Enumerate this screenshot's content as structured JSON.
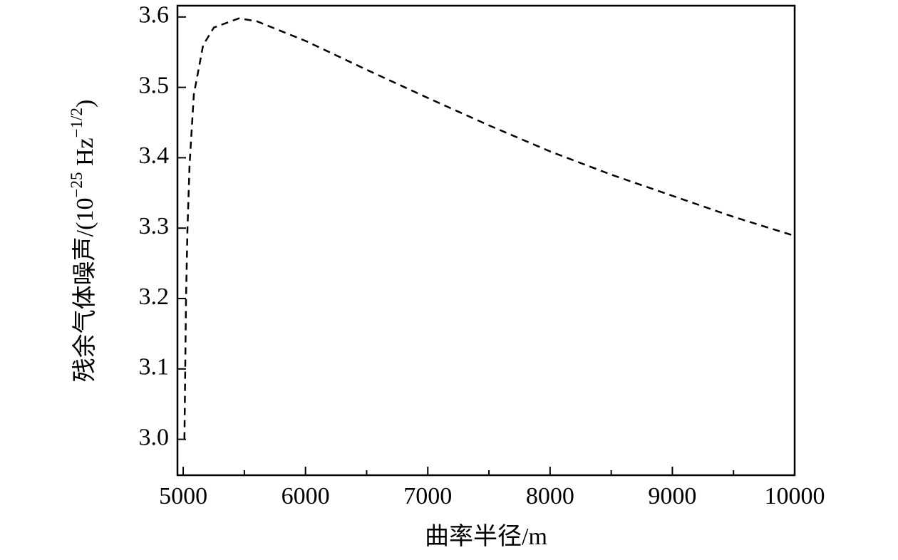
{
  "chart_data": {
    "type": "line",
    "xlabel": "曲率半径/m",
    "ylabel": [
      {
        "text": "残余气体噪声/(10"
      },
      {
        "sup": "−25"
      },
      {
        "text": " Hz"
      },
      {
        "sup": "−1/2"
      },
      {
        "text": ")"
      }
    ],
    "x": [
      5010,
      5023,
      5035,
      5052,
      5087,
      5163,
      5251,
      5455,
      5600,
      5800,
      6000,
      6500,
      7000,
      7500,
      8000,
      8500,
      9000,
      9500,
      10000
    ],
    "series": [
      {
        "color": "#000000",
        "dashed": true,
        "values": [
          3.0,
          3.2,
          3.3,
          3.39,
          3.49,
          3.56,
          3.585,
          3.598,
          3.594,
          3.58,
          3.566,
          3.525,
          3.485,
          3.446,
          3.409,
          3.376,
          3.346,
          3.316,
          3.289
        ]
      }
    ],
    "xlim": [
      4953,
      10000
    ],
    "ylim": [
      2.949,
      3.616
    ],
    "xticks": [
      5000,
      6000,
      7000,
      8000,
      9000,
      10000
    ],
    "xminorticks": [
      5500,
      6500,
      7500,
      8500,
      9500
    ],
    "yticks": [
      {
        "value": 3,
        "label": "3.0"
      },
      3.1,
      3.2,
      3.3,
      3.4,
      3.5,
      3.6
    ]
  }
}
